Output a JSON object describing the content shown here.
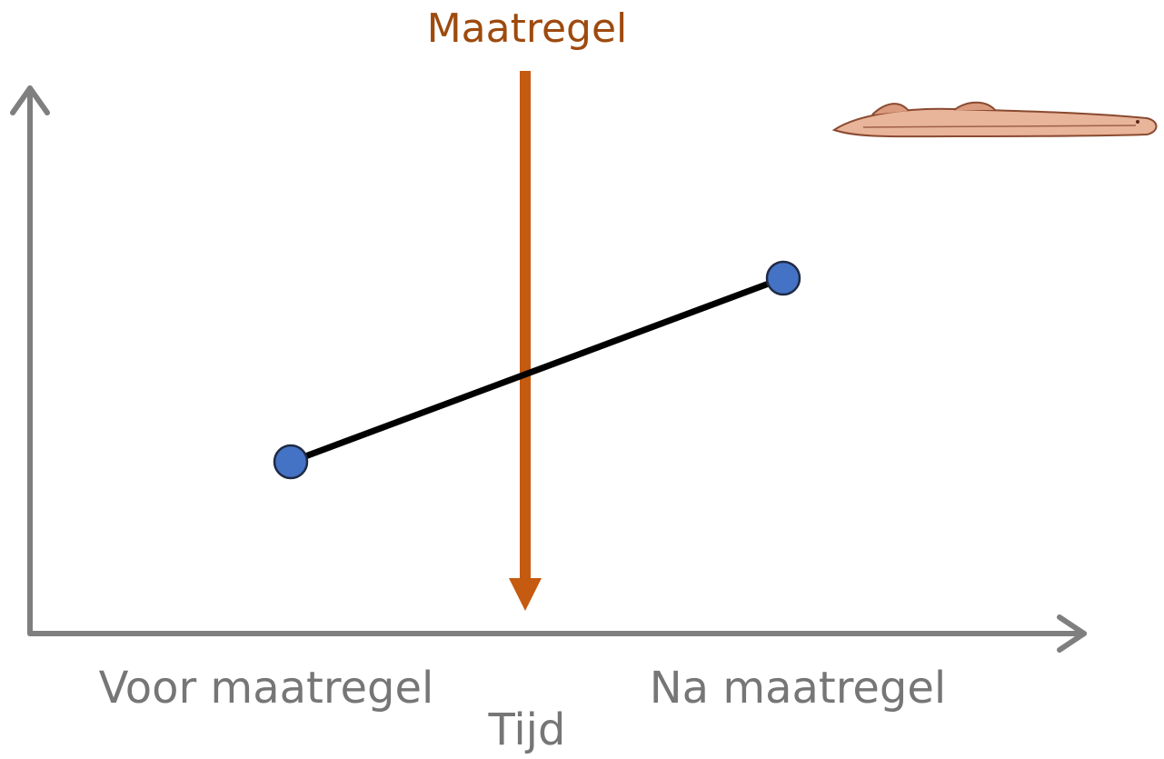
{
  "title": "Maatregel",
  "x_axis": {
    "label": "Tijd",
    "categories": [
      "Voor maatregel",
      "Na maatregel"
    ]
  }
}
